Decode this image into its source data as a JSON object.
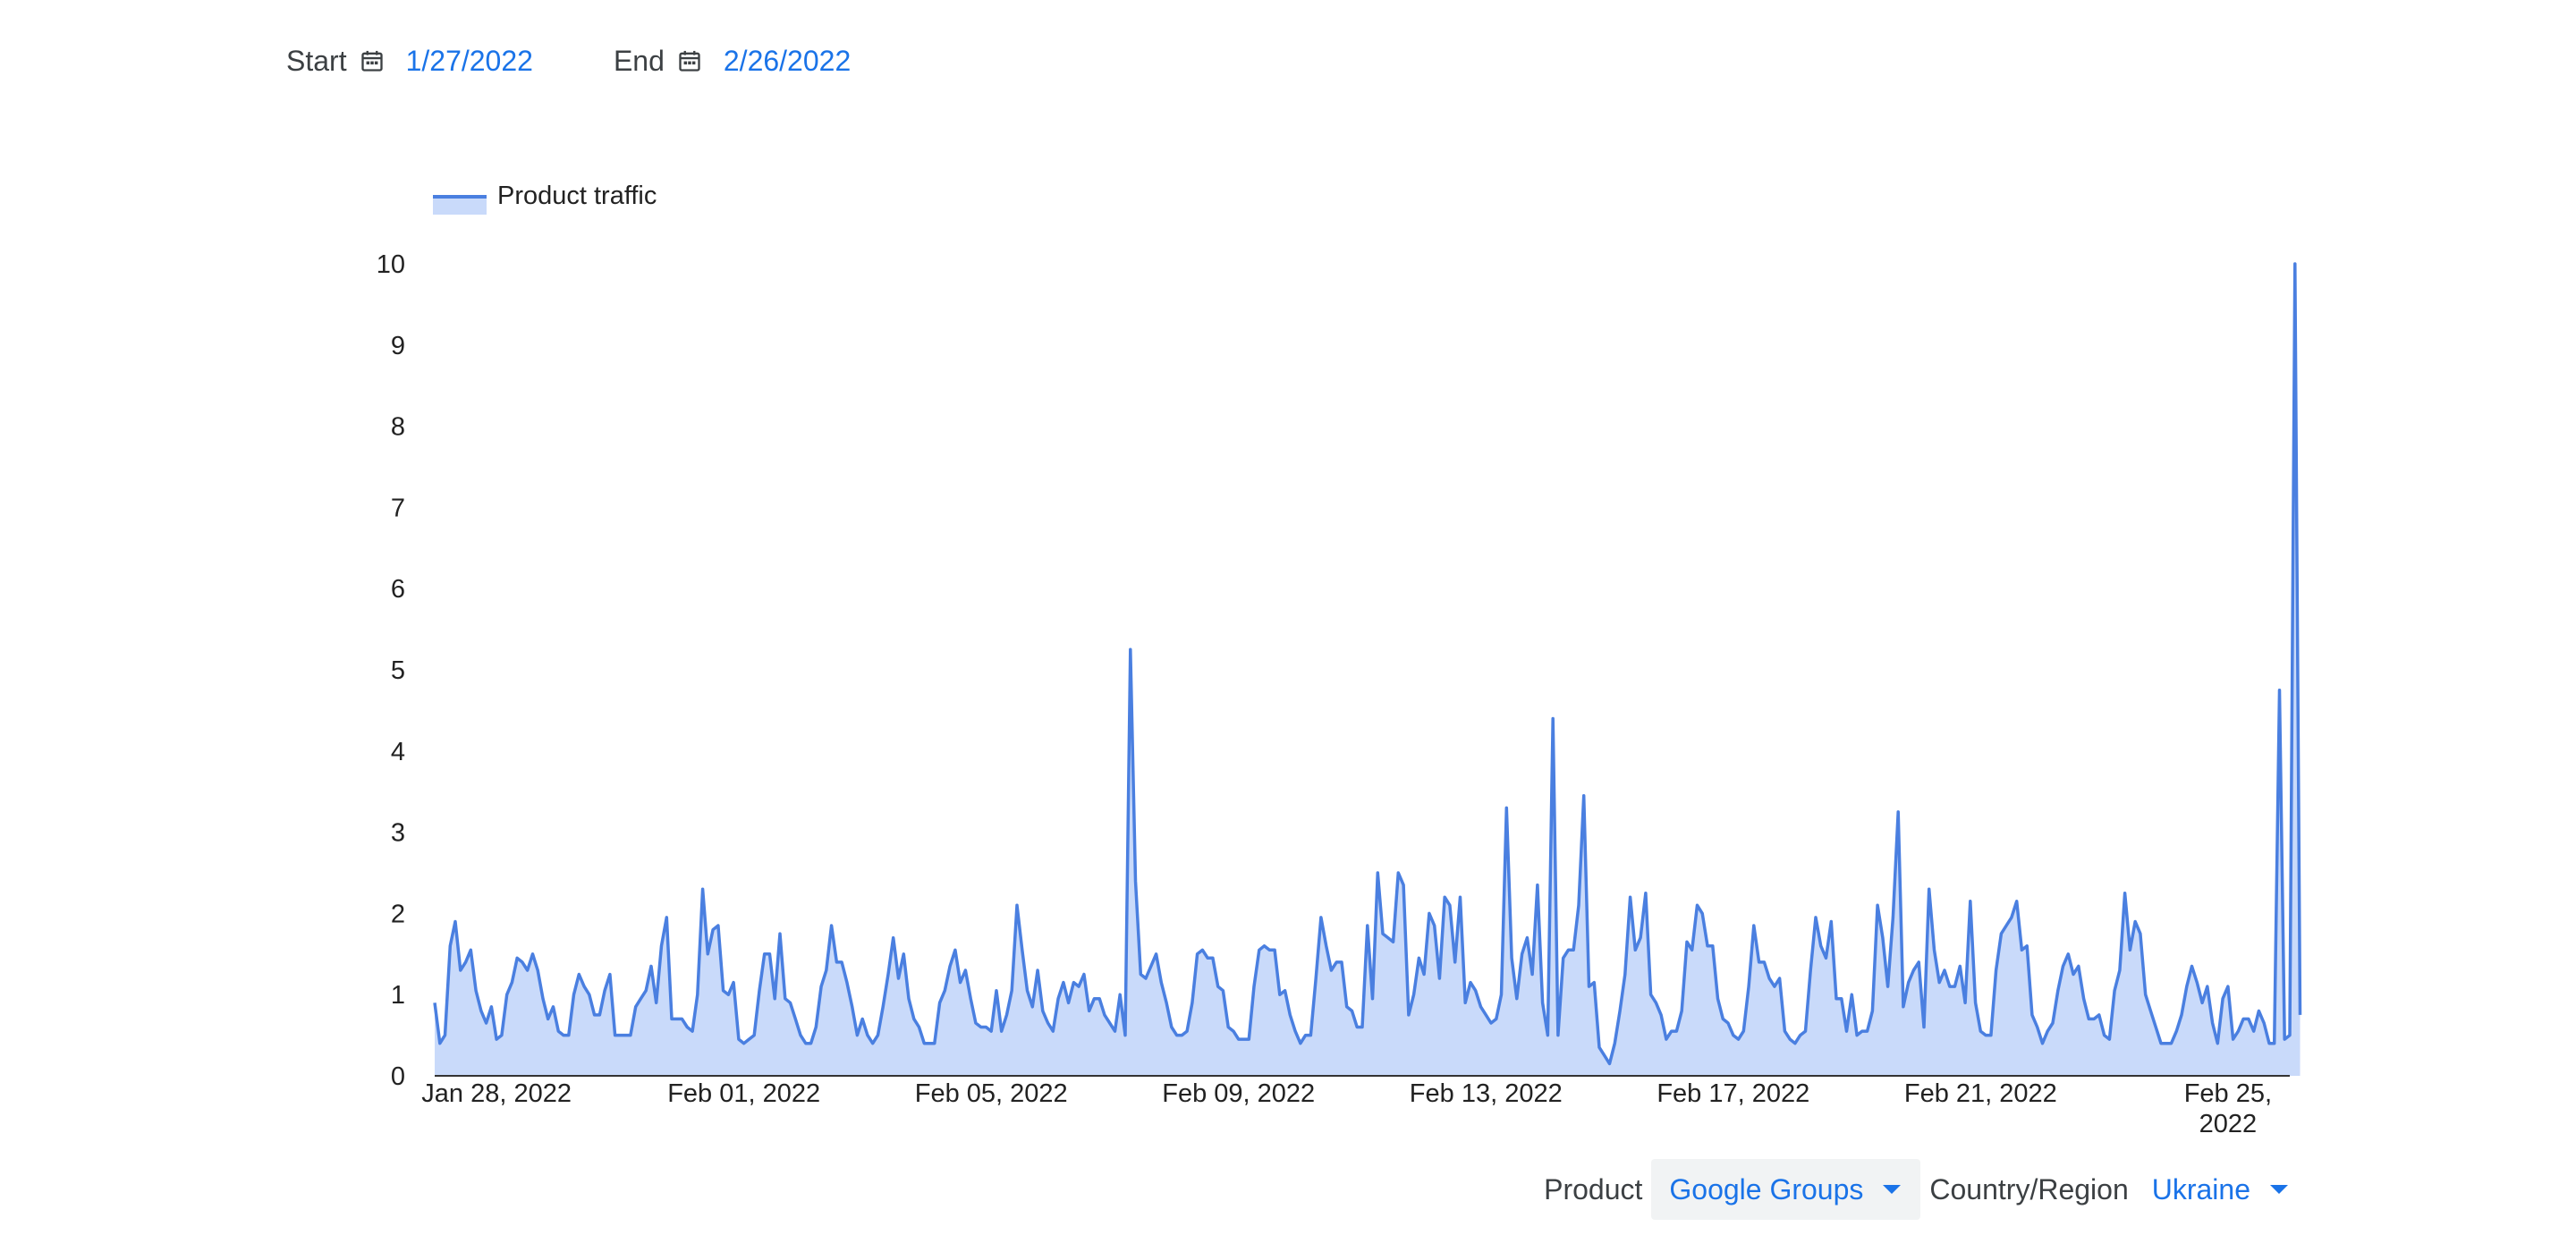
{
  "date_range": {
    "start_label": "Start",
    "start_value": "1/27/2022",
    "end_label": "End",
    "end_value": "2/26/2022",
    "calendar_icon": "calendar-icon"
  },
  "filters": {
    "product_label": "Product",
    "product_value": "Google Groups",
    "country_label": "Country/Region",
    "country_value": "Ukraine",
    "dropdown_icon": "caret-down-icon"
  },
  "colors": {
    "line": "#4a7fe0",
    "fill": "#c9dafa",
    "accent": "#1a73e8",
    "axis": "#222222"
  },
  "chart_data": {
    "type": "area",
    "legend_position": "top-left",
    "grid": false,
    "series": [
      {
        "name": "Product traffic",
        "points_per_day": 12,
        "values": [
          0.9,
          0.4,
          0.5,
          1.6,
          1.9,
          1.3,
          1.4,
          1.55,
          1.05,
          0.8,
          0.65,
          0.85,
          0.45,
          0.5,
          1.0,
          1.15,
          1.45,
          1.4,
          1.3,
          1.5,
          1.3,
          0.95,
          0.7,
          0.85,
          0.55,
          0.5,
          0.5,
          1.0,
          1.25,
          1.1,
          1.0,
          0.75,
          0.75,
          1.05,
          1.25,
          0.5,
          0.5,
          0.5,
          0.5,
          0.85,
          0.95,
          1.05,
          1.35,
          0.9,
          1.6,
          1.95,
          0.7,
          0.7,
          0.7,
          0.6,
          0.55,
          1.0,
          2.3,
          1.5,
          1.8,
          1.85,
          1.05,
          1.0,
          1.15,
          0.45,
          0.4,
          0.45,
          0.5,
          1.05,
          1.5,
          1.5,
          0.95,
          1.75,
          0.95,
          0.9,
          0.7,
          0.5,
          0.4,
          0.4,
          0.6,
          1.1,
          1.3,
          1.85,
          1.4,
          1.4,
          1.15,
          0.85,
          0.5,
          0.7,
          0.5,
          0.4,
          0.5,
          0.85,
          1.25,
          1.7,
          1.2,
          1.5,
          0.95,
          0.7,
          0.6,
          0.4,
          0.4,
          0.4,
          0.9,
          1.05,
          1.35,
          1.55,
          1.15,
          1.3,
          0.95,
          0.65,
          0.6,
          0.6,
          0.55,
          1.05,
          0.55,
          0.75,
          1.05,
          2.1,
          1.55,
          1.05,
          0.85,
          1.3,
          0.8,
          0.65,
          0.55,
          0.95,
          1.15,
          0.9,
          1.15,
          1.1,
          1.25,
          0.8,
          0.95,
          0.95,
          0.75,
          0.65,
          0.55,
          1.0,
          0.5,
          5.25,
          2.4,
          1.25,
          1.2,
          1.35,
          1.5,
          1.15,
          0.9,
          0.6,
          0.5,
          0.5,
          0.55,
          0.9,
          1.5,
          1.55,
          1.45,
          1.45,
          1.1,
          1.05,
          0.6,
          0.55,
          0.45,
          0.45,
          0.45,
          1.1,
          1.55,
          1.6,
          1.55,
          1.55,
          1.0,
          1.05,
          0.75,
          0.55,
          0.4,
          0.5,
          0.5,
          1.2,
          1.95,
          1.6,
          1.3,
          1.4,
          1.4,
          0.85,
          0.8,
          0.6,
          0.6,
          1.85,
          0.95,
          2.5,
          1.75,
          1.7,
          1.65,
          2.5,
          2.35,
          0.75,
          1.0,
          1.45,
          1.25,
          2.0,
          1.85,
          1.2,
          2.2,
          2.1,
          1.4,
          2.2,
          0.9,
          1.15,
          1.05,
          0.85,
          0.75,
          0.65,
          0.7,
          1.0,
          3.3,
          1.45,
          0.95,
          1.5,
          1.7,
          1.25,
          2.35,
          0.9,
          0.5,
          4.4,
          0.5,
          1.45,
          1.55,
          1.55,
          2.1,
          3.45,
          1.1,
          1.15,
          0.35,
          0.25,
          0.15,
          0.4,
          0.8,
          1.25,
          2.2,
          1.55,
          1.7,
          2.25,
          1.0,
          0.9,
          0.75,
          0.45,
          0.55,
          0.55,
          0.8,
          1.65,
          1.55,
          2.1,
          2.0,
          1.6,
          1.6,
          0.95,
          0.7,
          0.65,
          0.5,
          0.45,
          0.55,
          1.1,
          1.85,
          1.4,
          1.4,
          1.2,
          1.1,
          1.2,
          0.55,
          0.45,
          0.4,
          0.5,
          0.55,
          1.3,
          1.95,
          1.6,
          1.45,
          1.9,
          0.95,
          0.95,
          0.55,
          1.0,
          0.5,
          0.55,
          0.55,
          0.8,
          2.1,
          1.7,
          1.1,
          1.95,
          3.25,
          0.85,
          1.15,
          1.3,
          1.4,
          0.6,
          2.3,
          1.55,
          1.15,
          1.3,
          1.1,
          1.1,
          1.35,
          0.9,
          2.15,
          0.9,
          0.55,
          0.5,
          0.5,
          1.3,
          1.75,
          1.85,
          1.95,
          2.15,
          1.55,
          1.6,
          0.75,
          0.6,
          0.4,
          0.55,
          0.65,
          1.05,
          1.35,
          1.5,
          1.25,
          1.35,
          0.95,
          0.7,
          0.7,
          0.75,
          0.5,
          0.45,
          1.05,
          1.3,
          2.25,
          1.55,
          1.9,
          1.75,
          1.0,
          0.8,
          0.6,
          0.4,
          0.4,
          0.4,
          0.55,
          0.75,
          1.1,
          1.35,
          1.15,
          0.9,
          1.1,
          0.65,
          0.4,
          0.95,
          1.1,
          0.45,
          0.55,
          0.7,
          0.7,
          0.55,
          0.8,
          0.65,
          0.4,
          0.4,
          4.75,
          0.45,
          0.5,
          10.0,
          0.75
        ]
      }
    ],
    "x_start": "2022-01-27",
    "x_end": "2022-02-26",
    "x_tick_labels": [
      {
        "date": "2022-01-28",
        "lines": [
          "Jan 28, 2022"
        ]
      },
      {
        "date": "2022-02-01",
        "lines": [
          "Feb 01, 2022"
        ]
      },
      {
        "date": "2022-02-05",
        "lines": [
          "Feb 05, 2022"
        ]
      },
      {
        "date": "2022-02-09",
        "lines": [
          "Feb 09, 2022"
        ]
      },
      {
        "date": "2022-02-13",
        "lines": [
          "Feb 13, 2022"
        ]
      },
      {
        "date": "2022-02-17",
        "lines": [
          "Feb 17, 2022"
        ]
      },
      {
        "date": "2022-02-21",
        "lines": [
          "Feb 21, 2022"
        ]
      },
      {
        "date": "2022-02-25",
        "lines": [
          "Feb 25,",
          "2022"
        ]
      }
    ],
    "y_ticks": [
      0,
      1,
      2,
      3,
      4,
      5,
      6,
      7,
      8,
      9,
      10
    ],
    "ylim": [
      0,
      10
    ]
  }
}
